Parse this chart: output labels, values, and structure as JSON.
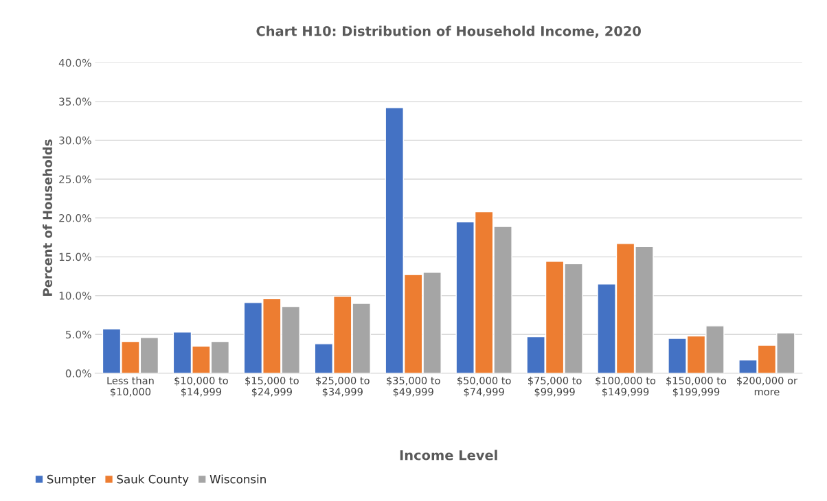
{
  "chart_data": {
    "type": "bar",
    "title": "Chart H10: Distribution of Household Income, 2020",
    "xlabel": "Income Level",
    "ylabel": "Percent of Households",
    "categories": [
      "Less than\n$10,000",
      "$10,000 to\n$14,999",
      "$15,000 to\n$24,999",
      "$25,000 to\n$34,999",
      "$35,000 to\n$49,999",
      "$50,000 to\n$74,999",
      "$75,000 to\n$99,999",
      "$100,000 to\n$149,999",
      "$150,000 to\n$199,999",
      "$200,000 or\nmore"
    ],
    "series": [
      {
        "name": "Sumpter",
        "color": "#4472c4",
        "values": [
          5.7,
          5.3,
          9.1,
          3.8,
          34.2,
          19.5,
          4.7,
          11.5,
          4.5,
          1.7
        ]
      },
      {
        "name": "Sauk County",
        "color": "#ed7d31",
        "values": [
          4.1,
          3.5,
          9.6,
          9.9,
          12.7,
          20.8,
          14.4,
          16.7,
          4.8,
          3.6
        ]
      },
      {
        "name": "Wisconsin",
        "color": "#a5a5a5",
        "values": [
          4.6,
          4.1,
          8.6,
          9.0,
          13.0,
          18.9,
          14.1,
          16.3,
          6.1,
          5.2
        ]
      }
    ],
    "ylim": [
      0,
      40
    ],
    "yticks": [
      {
        "value": 0,
        "label": "0.0%"
      },
      {
        "value": 5,
        "label": "5.0%"
      },
      {
        "value": 10,
        "label": "10.0%"
      },
      {
        "value": 15,
        "label": "15.0%"
      },
      {
        "value": 20,
        "label": "20.0%"
      },
      {
        "value": 25,
        "label": "25.0%"
      },
      {
        "value": 30,
        "label": "30.0%"
      },
      {
        "value": 35,
        "label": "35.0%"
      },
      {
        "value": 40,
        "label": "40.0%"
      }
    ],
    "grid": "y",
    "legend": "bottom left"
  }
}
